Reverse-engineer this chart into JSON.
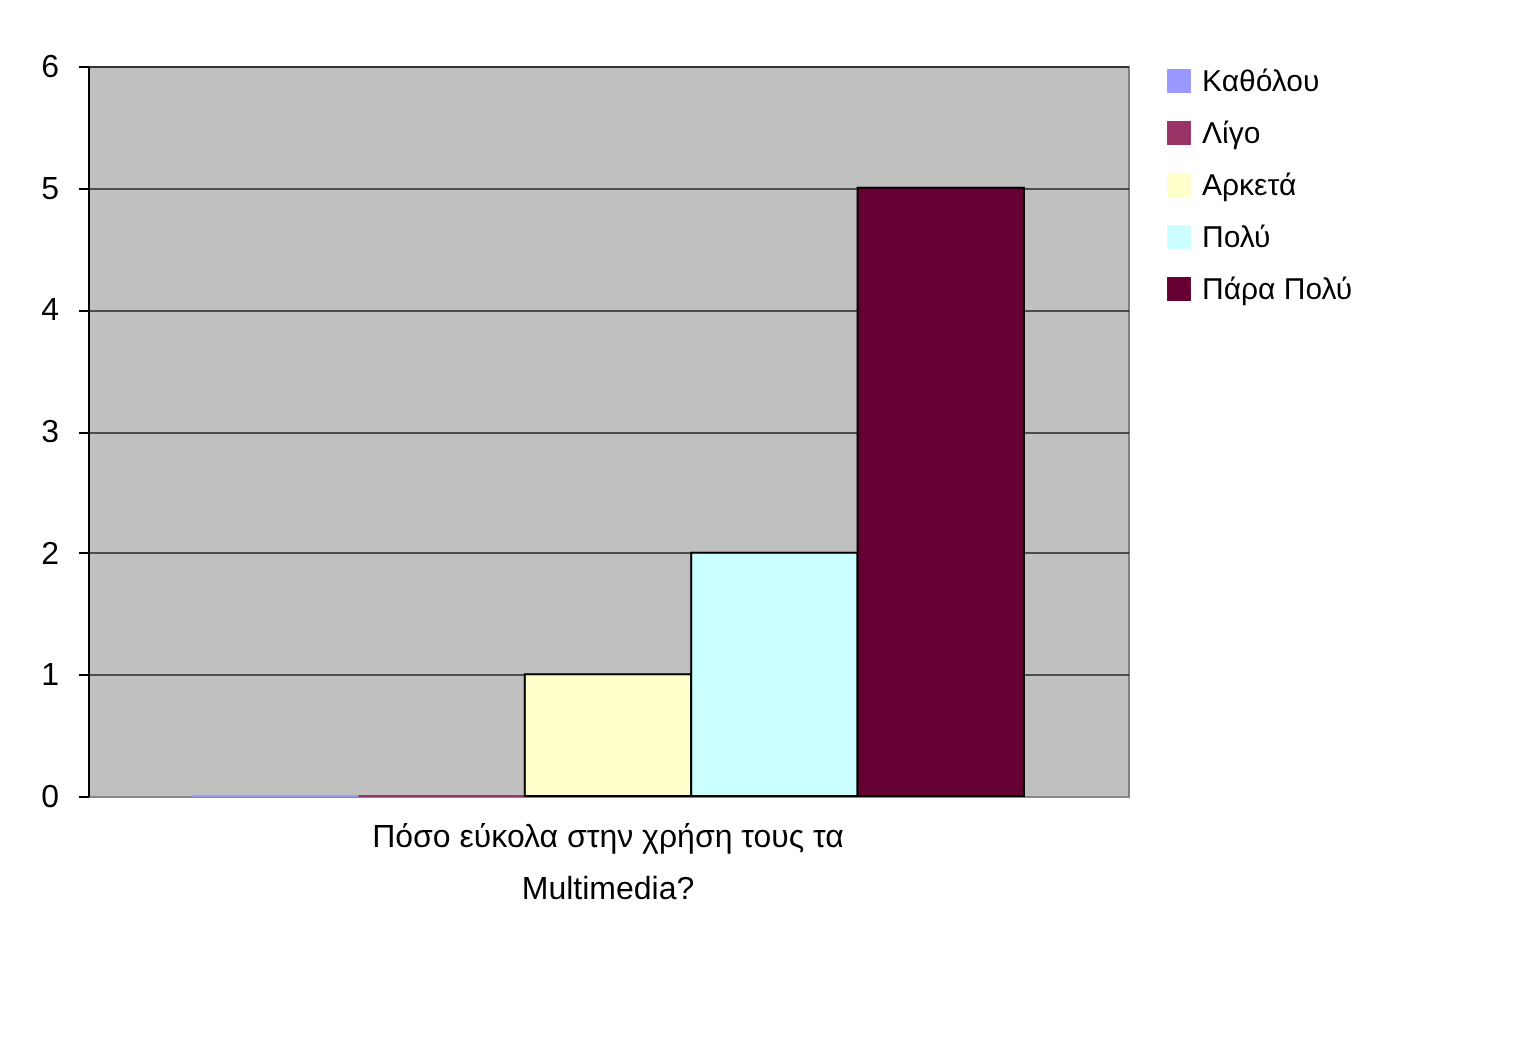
{
  "chart_data": {
    "type": "bar",
    "categories": [
      "Πόσο εύκολα στην χρήση τους τα Multimedia?"
    ],
    "series": [
      {
        "name": "Καθόλου",
        "color": "#9999ff",
        "values": [
          0
        ]
      },
      {
        "name": "Λίγο",
        "color": "#993366",
        "values": [
          0
        ]
      },
      {
        "name": "Αρκετά",
        "color": "#ffffcc",
        "values": [
          1
        ]
      },
      {
        "name": "Πολύ",
        "color": "#ccffff",
        "values": [
          2
        ]
      },
      {
        "name": "Πάρα Πολύ",
        "color": "#660033",
        "values": [
          5
        ]
      }
    ],
    "ylim": [
      0,
      6
    ],
    "yticks": [
      0,
      1,
      2,
      3,
      4,
      5,
      6
    ],
    "grid": "y",
    "legend": "right"
  }
}
